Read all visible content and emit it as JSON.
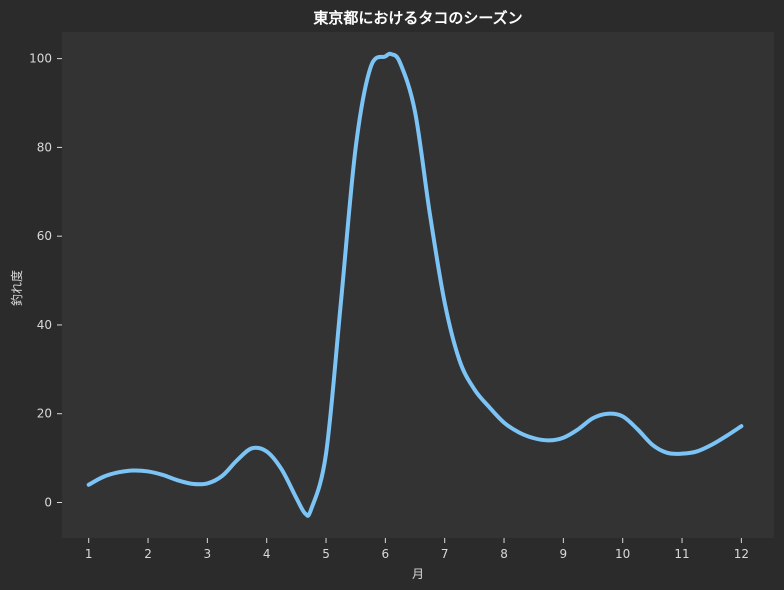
{
  "chart_data": {
    "type": "line",
    "title": "東京都におけるタコのシーズン",
    "xlabel": "月",
    "ylabel": "釣れ度",
    "x_ticks": [
      "1",
      "2",
      "3",
      "4",
      "5",
      "6",
      "7",
      "8",
      "9",
      "10",
      "11",
      "12"
    ],
    "y_ticks": [
      "0",
      "20",
      "40",
      "60",
      "80",
      "100"
    ],
    "xlim": [
      0.55,
      12.55
    ],
    "ylim": [
      -8,
      106
    ],
    "grid": false,
    "colors": {
      "background": "#2b2b2b",
      "plot_area": "#333333",
      "line": "#7cc4f5"
    },
    "series": [
      {
        "x": [
          1,
          1.25,
          1.5,
          1.75,
          2,
          2.25,
          2.5,
          2.75,
          3,
          3.25,
          3.5,
          3.75,
          4,
          4.25,
          4.5,
          4.65,
          4.75,
          5,
          5.25,
          5.5,
          5.75,
          6,
          6.1,
          6.25,
          6.5,
          6.75,
          7,
          7.25,
          7.5,
          7.75,
          8,
          8.25,
          8.5,
          8.75,
          9,
          9.25,
          9.5,
          9.75,
          10,
          10.25,
          10.5,
          10.75,
          11,
          11.25,
          11.5,
          11.75,
          12
        ],
        "y": [
          4,
          5.8,
          6.8,
          7.2,
          7,
          6.2,
          5,
          4.2,
          4.3,
          6,
          9.5,
          12.2,
          11.5,
          7.5,
          1,
          -2.5,
          -1.5,
          11,
          45,
          80,
          98,
          100.5,
          101,
          99,
          88,
          65,
          45,
          32,
          25.5,
          21.5,
          18,
          15.8,
          14.5,
          14,
          14.6,
          16.5,
          19,
          20,
          19.4,
          16.5,
          13,
          11.2,
          11,
          11.5,
          13,
          15,
          17.2
        ]
      }
    ]
  }
}
